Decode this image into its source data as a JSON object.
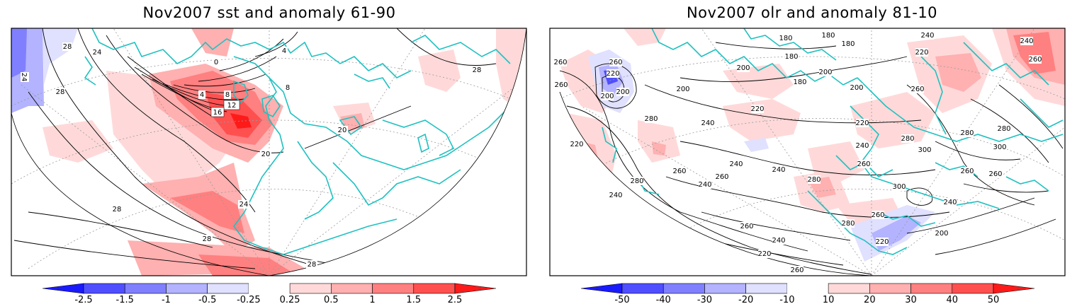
{
  "panels": [
    {
      "title": "Nov2007 sst and anomaly 61-90",
      "variable": "sst",
      "contour_labels": [
        "0",
        "4",
        "8",
        "12",
        "16",
        "20",
        "24",
        "28"
      ],
      "colorbar": {
        "colors": [
          "#1a1aff",
          "#4f4fff",
          "#8080ff",
          "#b3b3ff",
          "#e0e0ff",
          "#ffffff",
          "#ffd9d9",
          "#ffb0b0",
          "#ff8080",
          "#ff5050",
          "#ff1a1a"
        ],
        "labels": [
          "-2.5",
          "-1.5",
          "-1",
          "-0.5",
          "-0.25",
          "0.25",
          "0.5",
          "1",
          "1.5",
          "2.5"
        ]
      }
    },
    {
      "title": "Nov2007 olr and anomaly 81-10",
      "variable": "olr",
      "contour_labels": [
        "180",
        "200",
        "220",
        "240",
        "260",
        "280",
        "300"
      ],
      "colorbar": {
        "colors": [
          "#1a1aff",
          "#4f4fff",
          "#8080ff",
          "#b3b3ff",
          "#e0e0ff",
          "#ffffff",
          "#ffd9d9",
          "#ffb0b0",
          "#ff8080",
          "#ff5050",
          "#ff1a1a"
        ],
        "labels": [
          "-50",
          "-40",
          "-30",
          "-20",
          "-10",
          "10",
          "20",
          "30",
          "40",
          "50"
        ]
      }
    }
  ],
  "colors": {
    "coastline": "#1fc1c1",
    "contour": "#000000",
    "grid": "#9a9a9a",
    "frame": "#000000"
  }
}
